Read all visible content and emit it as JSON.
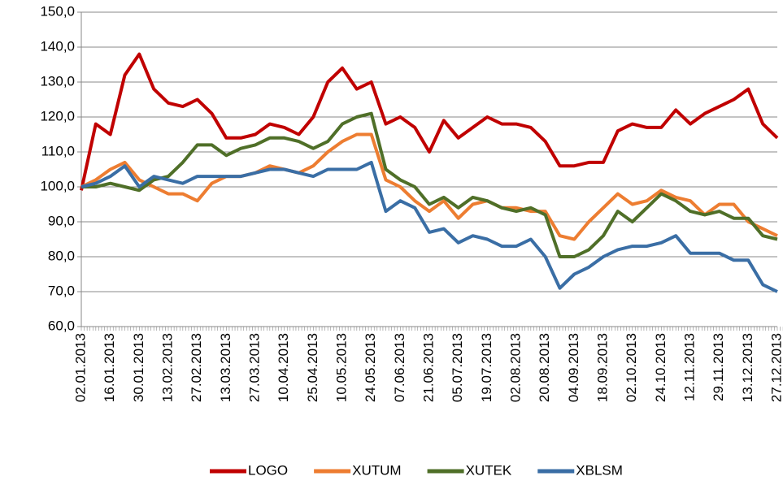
{
  "chart_data": {
    "type": "line",
    "categories": [
      "02.01.2013",
      null,
      "16.01.2013",
      null,
      "30.01.2013",
      null,
      "13.02.2013",
      null,
      "27.02.2013",
      null,
      "13.03.2013",
      null,
      "27.03.2013",
      null,
      "10.04.2013",
      null,
      "25.04.2013",
      null,
      "10.05.2013",
      null,
      "24.05.2013",
      null,
      "07.06.2013",
      null,
      "21.06.2013",
      null,
      "05.07.2013",
      null,
      "19.07.2013",
      null,
      "02.08.2013",
      null,
      "20.08.2013",
      null,
      "04.09.2013",
      null,
      "18.09.2013",
      null,
      "02.10.2013",
      null,
      "24.10.2013",
      null,
      "12.11.2013",
      null,
      "29.11.2013",
      null,
      "13.12.2013",
      null,
      "27.12.2013"
    ],
    "series": [
      {
        "name": "LOGO",
        "color": "#c00000",
        "values": [
          99,
          118,
          115,
          132,
          138,
          128,
          124,
          123,
          125,
          121,
          114,
          114,
          115,
          118,
          117,
          115,
          120,
          130,
          134,
          128,
          130,
          118,
          120,
          117,
          110,
          119,
          114,
          117,
          120,
          118,
          118,
          117,
          113,
          106,
          106,
          107,
          107,
          116,
          118,
          117,
          117,
          122,
          118,
          121,
          123,
          125,
          128,
          118,
          114
        ]
      },
      {
        "name": "XUTUM",
        "color": "#ed7d31",
        "values": [
          100,
          102,
          105,
          107,
          102,
          100,
          98,
          98,
          96,
          101,
          103,
          103,
          104,
          106,
          105,
          104,
          106,
          110,
          113,
          115,
          115,
          102,
          100,
          96,
          93,
          96,
          91,
          95,
          96,
          94,
          94,
          93,
          93,
          86,
          85,
          90,
          94,
          98,
          95,
          96,
          99,
          97,
          96,
          92,
          95,
          95,
          90,
          88,
          86
        ]
      },
      {
        "name": "XUTEK",
        "color": "#4f6f28",
        "values": [
          100,
          100,
          101,
          100,
          99,
          102,
          103,
          107,
          112,
          112,
          109,
          111,
          112,
          114,
          114,
          113,
          111,
          113,
          118,
          120,
          121,
          105,
          102,
          100,
          95,
          97,
          94,
          97,
          96,
          94,
          93,
          94,
          92,
          80,
          80,
          82,
          86,
          93,
          90,
          94,
          98,
          96,
          93,
          92,
          93,
          91,
          91,
          86,
          85
        ]
      },
      {
        "name": "XBLSM",
        "color": "#3a6ea5",
        "values": [
          100,
          101,
          103,
          106,
          100,
          103,
          102,
          101,
          103,
          103,
          103,
          103,
          104,
          105,
          105,
          104,
          103,
          105,
          105,
          105,
          107,
          93,
          96,
          94,
          87,
          88,
          84,
          86,
          85,
          83,
          83,
          85,
          80,
          71,
          75,
          77,
          80,
          82,
          83,
          83,
          84,
          86,
          81,
          81,
          81,
          79,
          79,
          72,
          70
        ]
      }
    ],
    "ylim": [
      60,
      150
    ],
    "yticks": [
      {
        "value": 60,
        "label": "60,0"
      },
      {
        "value": 70,
        "label": "70,0"
      },
      {
        "value": 80,
        "label": "80,0"
      },
      {
        "value": 90,
        "label": "90,0"
      },
      {
        "value": 100,
        "label": "100,0"
      },
      {
        "value": 110,
        "label": "110,0"
      },
      {
        "value": 120,
        "label": "120,0"
      },
      {
        "value": 130,
        "label": "130,0"
      },
      {
        "value": 140,
        "label": "140,0"
      },
      {
        "value": 150,
        "label": "150,0"
      }
    ],
    "grid": true,
    "legend": "bottom"
  }
}
